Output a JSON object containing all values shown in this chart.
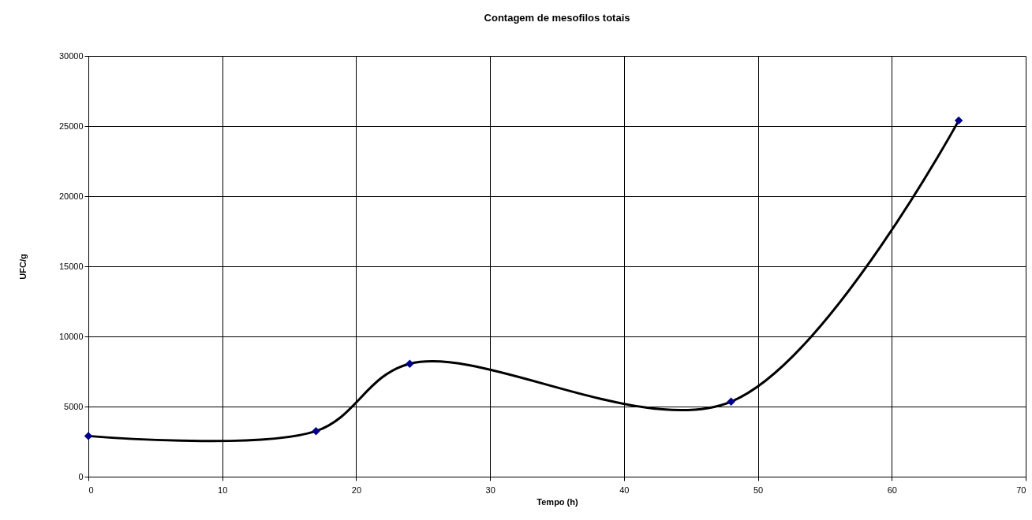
{
  "chart_data": {
    "type": "line",
    "title": "Contagem de mesofilos totais",
    "xlabel": "Tempo (h)",
    "ylabel": "UFC/g",
    "x": [
      0,
      17,
      24,
      48,
      65
    ],
    "series": [
      {
        "color": "#000000",
        "marker": "none",
        "values": [
          2900,
          3250,
          8050,
          5350,
          25400
        ]
      },
      {
        "type": "scatter",
        "color": "#00008b",
        "marker": "diamond",
        "values": [
          2900,
          3250,
          8050,
          5350,
          25400
        ]
      }
    ],
    "xlim": [
      0,
      70
    ],
    "xticks": [
      0,
      10,
      20,
      30,
      40,
      50,
      60,
      70
    ],
    "ylim": [
      0,
      30000
    ],
    "yticks": [
      0,
      5000,
      10000,
      15000,
      20000,
      25000,
      30000
    ],
    "grid": true
  }
}
